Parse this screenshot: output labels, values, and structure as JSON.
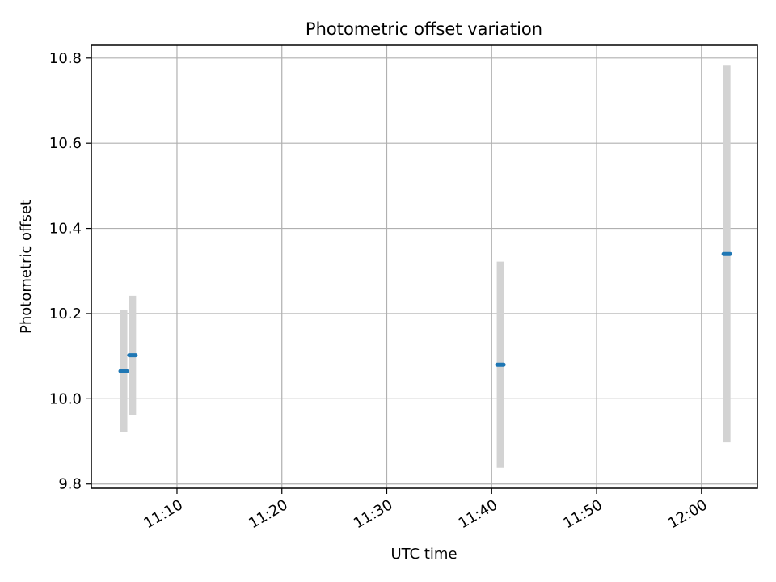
{
  "chart_data": {
    "type": "scatter",
    "title": "Photometric offset variation",
    "xlabel": "UTC time",
    "ylabel": "Photometric offset",
    "xlim": [
      "11:01:50",
      "12:05:20"
    ],
    "ylim": [
      9.79,
      10.83
    ],
    "xticks": [
      "11:10",
      "11:20",
      "11:30",
      "11:40",
      "11:50",
      "12:00"
    ],
    "yticks": [
      9.8,
      10.0,
      10.2,
      10.4,
      10.6,
      10.8
    ],
    "grid": true,
    "series": [
      {
        "x": [
          "11:04:55",
          "11:05:45",
          "11:40:50",
          "12:02:25"
        ],
        "y": [
          10.065,
          10.102,
          10.08,
          10.34
        ],
        "yerr": [
          0.144,
          0.14,
          0.242,
          0.442
        ]
      }
    ],
    "colors": {
      "marker": "#1f77b4",
      "errorbar": "#d3d3d3",
      "grid": "#b0b0b0",
      "axes": "#000000"
    }
  }
}
